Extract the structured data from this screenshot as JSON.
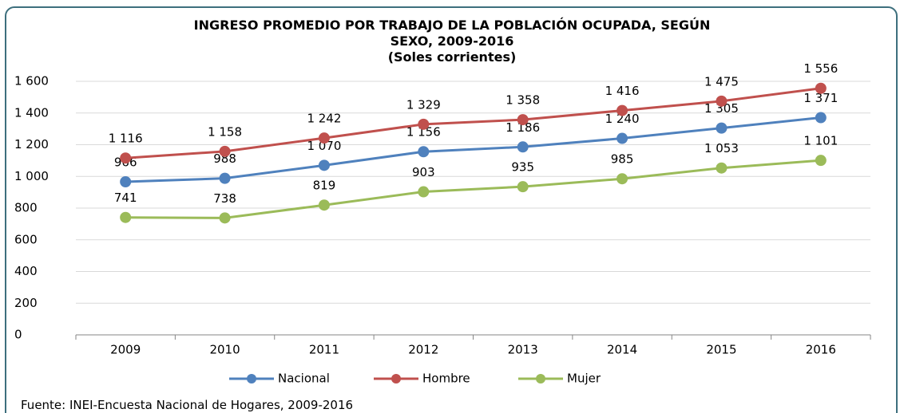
{
  "chart_data": {
    "type": "line",
    "title": "INGRESO PROMEDIO POR TRABAJO DE LA POBLACIÓN OCUPADA, SEGÚN SEXO, 2009-2016",
    "subtitle": "(Soles corrientes)",
    "source": "Fuente: INEI-Encuesta Nacional de Hogares, 2009-2016",
    "categories": [
      "2009",
      "2010",
      "2011",
      "2012",
      "2013",
      "2014",
      "2015",
      "2016"
    ],
    "series": [
      {
        "name": "Nacional",
        "color": "#4f81bd",
        "values": [
          966,
          988,
          1070,
          1156,
          1186,
          1240,
          1305,
          1371
        ],
        "value_labels": [
          "966",
          "988",
          "1 070",
          "1 156",
          "1 186",
          "1 240",
          "1 305",
          "1 371"
        ]
      },
      {
        "name": "Hombre",
        "color": "#c0504d",
        "values": [
          1116,
          1158,
          1242,
          1329,
          1358,
          1416,
          1475,
          1556
        ],
        "value_labels": [
          "1 116",
          "1 158",
          "1 242",
          "1 329",
          "1 358",
          "1 416",
          "1 475",
          "1 556"
        ]
      },
      {
        "name": "Mujer",
        "color": "#9bbb59",
        "values": [
          741,
          738,
          819,
          903,
          935,
          985,
          1053,
          1101
        ],
        "value_labels": [
          "741",
          "738",
          "819",
          "903",
          "935",
          "985",
          "1 053",
          "1 101"
        ]
      }
    ],
    "ylim": [
      0,
      1600
    ],
    "yticks": [
      0,
      200,
      400,
      600,
      800,
      {
        "value": 1000,
        "label": "1 000"
      },
      {
        "value": 1200,
        "label": "1 200"
      },
      {
        "value": 1400,
        "label": "1 400"
      },
      {
        "value": 1600,
        "label": "1 600"
      }
    ],
    "grid": true,
    "legend": "bottom"
  }
}
